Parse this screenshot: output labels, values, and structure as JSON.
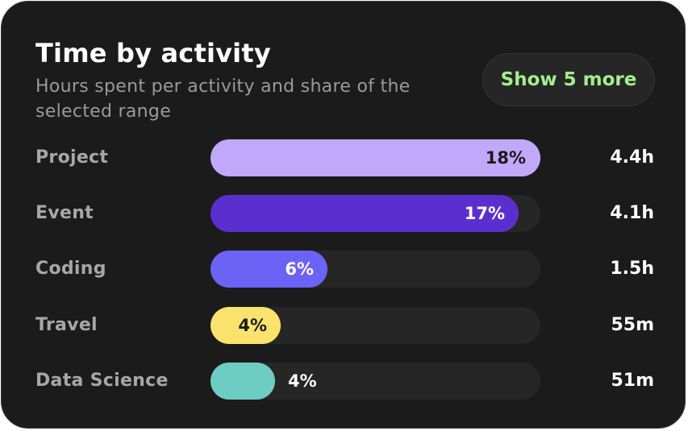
{
  "card": {
    "title": "Time by activity",
    "subtitle": "Hours spent per activity and share of the selected range",
    "more_button": "Show 5 more"
  },
  "colors": {
    "background": "#1b1b1b",
    "track": "#262626",
    "accent_green": "#a3ef8e"
  },
  "activities": [
    {
      "label": "Project",
      "percent": "18%",
      "value": "4.4h",
      "share": 0.18,
      "color": "#c2a8fb",
      "text_color": "#1b1b1b"
    },
    {
      "label": "Event",
      "percent": "17%",
      "value": "4.1h",
      "share": 0.17,
      "color": "#5b2fcf",
      "text_color": "#ffffff"
    },
    {
      "label": "Coding",
      "percent": "6%",
      "value": "1.5h",
      "share": 0.06,
      "color": "#6b63f6",
      "text_color": "#ffffff"
    },
    {
      "label": "Travel",
      "percent": "4%",
      "value": "55m",
      "share": 0.04,
      "color": "#fae36d",
      "text_color": "#1b1b1b"
    },
    {
      "label": "Data Science",
      "percent": "4%",
      "value": "51m",
      "share": 0.04,
      "color": "#6ecdc3",
      "text_color": "#ffffff"
    }
  ]
}
